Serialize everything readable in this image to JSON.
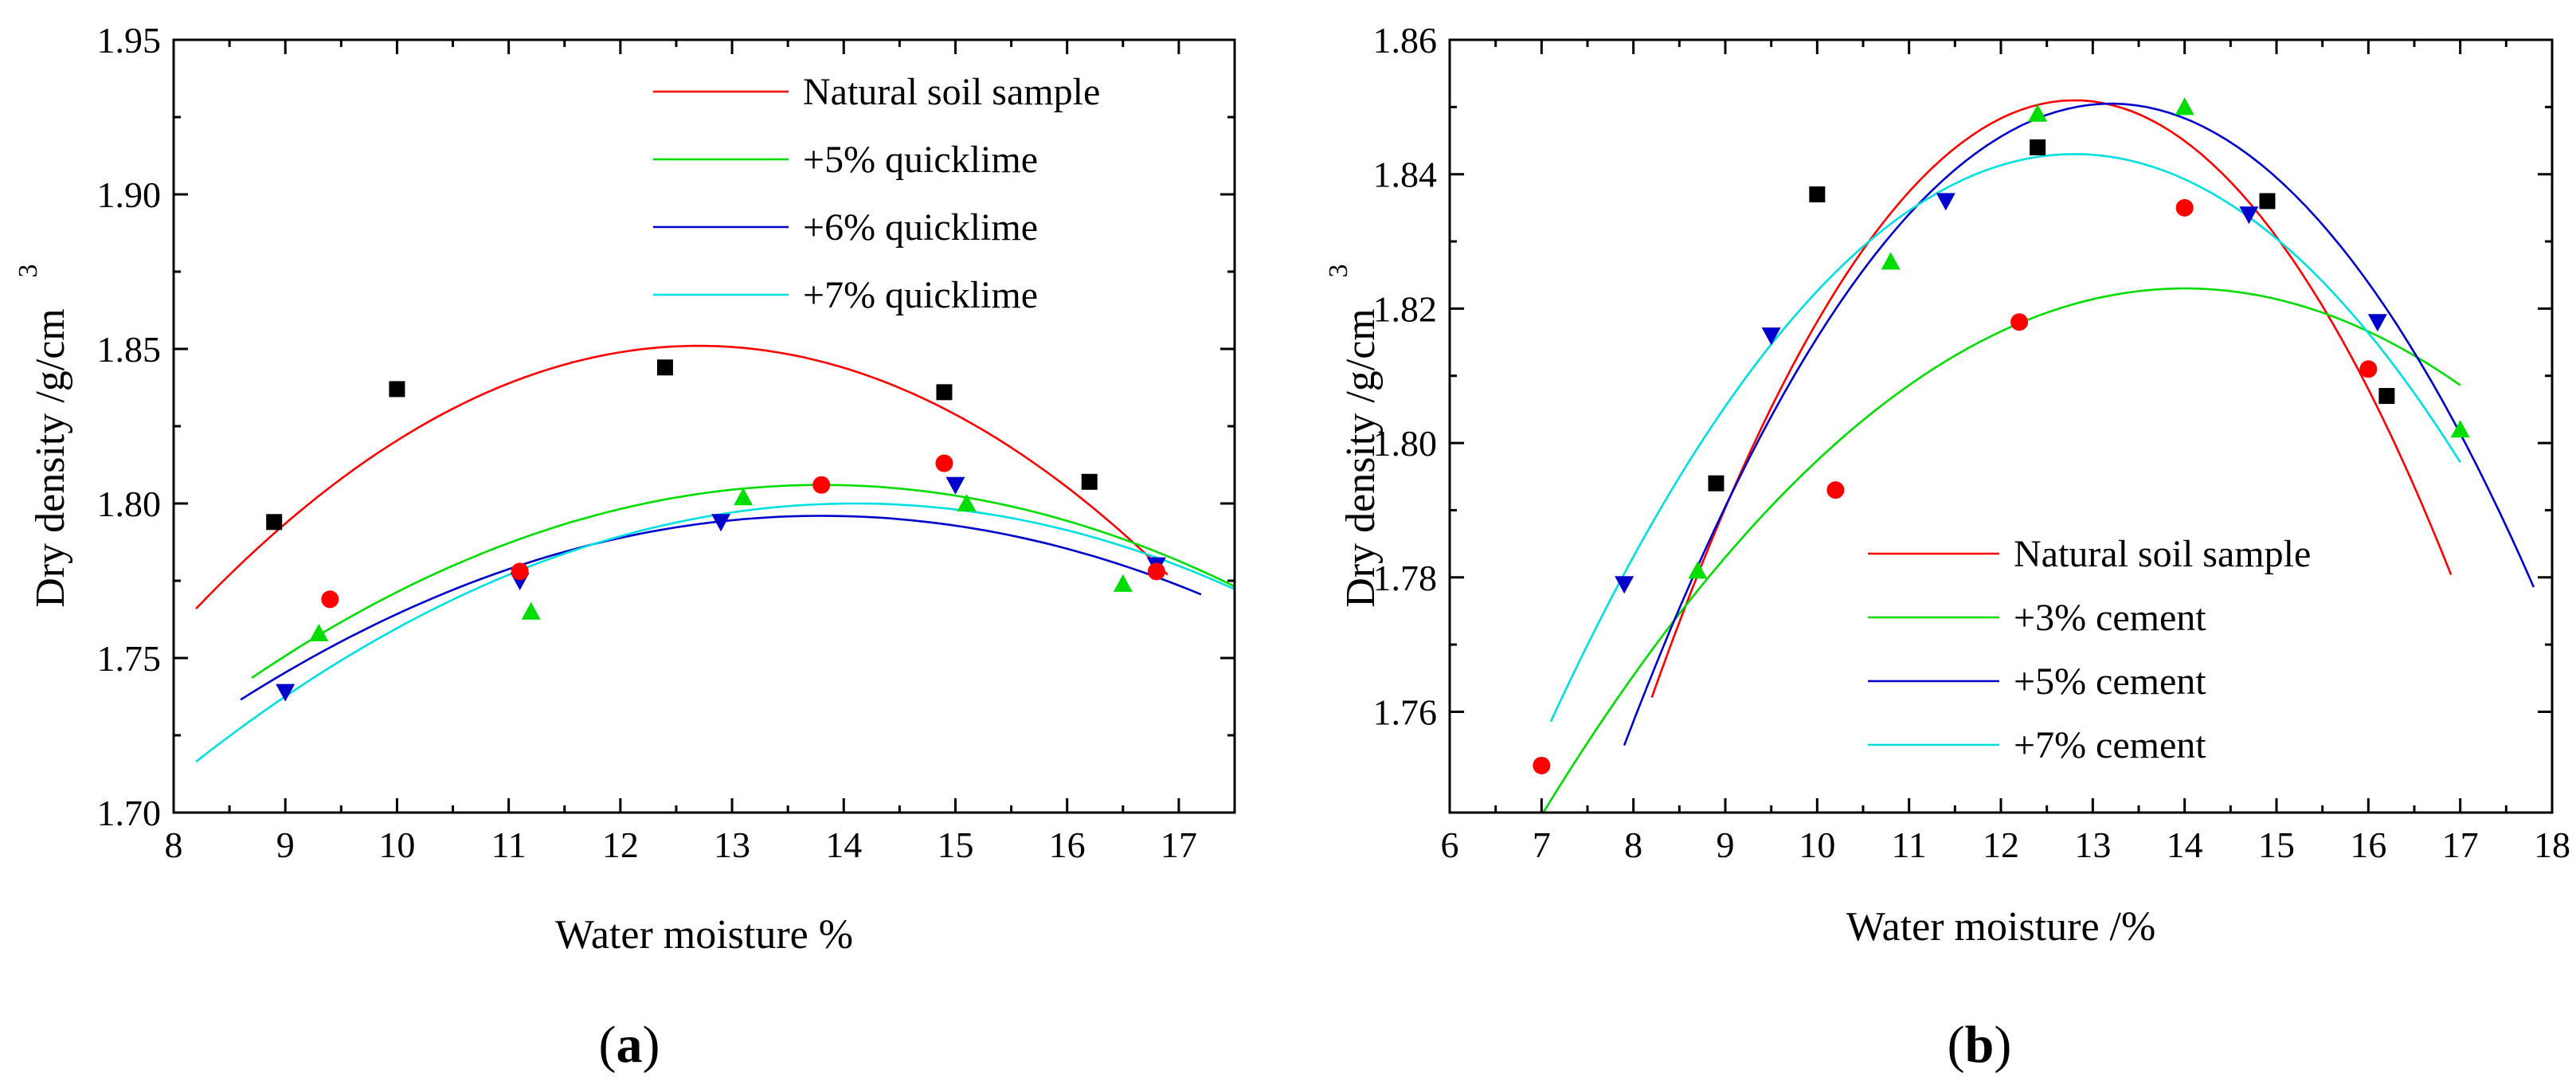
{
  "chart_data": [
    {
      "type": "scatter",
      "panel_label": "a",
      "xlabel": "Water moisture %",
      "ylabel": "Dry density /g/cm",
      "ylabel_superscript": "3",
      "xlim": [
        8,
        17.5
      ],
      "ylim": [
        1.7,
        1.95
      ],
      "xticks": [
        8,
        9,
        10,
        11,
        12,
        13,
        14,
        15,
        16,
        17
      ],
      "xtick_labels": [
        "8",
        "9",
        "10",
        "11",
        "12",
        "13",
        "14",
        "15",
        "16",
        "17"
      ],
      "yticks": [
        1.7,
        1.75,
        1.8,
        1.85,
        1.9,
        1.95
      ],
      "ytick_labels": [
        "1.70",
        "1.75",
        "1.80",
        "1.85",
        "1.90",
        "1.95"
      ],
      "legend_position": "top-right",
      "series": [
        {
          "name": "Natural soil sample",
          "color": "#ff0000",
          "marker": "square",
          "marker_color": "#000000",
          "points": [
            [
              8.9,
              1.794
            ],
            [
              10.0,
              1.837
            ],
            [
              12.4,
              1.844
            ],
            [
              14.9,
              1.836
            ],
            [
              16.2,
              1.807
            ]
          ],
          "fit": {
            "vertex_x": 12.7,
            "vertex_y": 1.851,
            "a": -0.0042,
            "x_range": [
              8.2,
              16.9
            ]
          }
        },
        {
          "name": "+5% quicklime",
          "color": "#00dd00",
          "marker": "triangle-up",
          "marker_color": "#00dd00",
          "points": [
            [
              9.3,
              1.758
            ],
            [
              11.2,
              1.765
            ],
            [
              13.1,
              1.802
            ],
            [
              15.1,
              1.8
            ],
            [
              16.5,
              1.774
            ]
          ],
          "fit": {
            "vertex_x": 13.8,
            "vertex_y": 1.806,
            "a": -0.0024,
            "x_range": [
              8.7,
              17.5
            ]
          }
        },
        {
          "name": "+6% quicklime",
          "color": "#0000cc",
          "marker": "triangle-down",
          "marker_color": "#0000cc",
          "points": [
            [
              9.0,
              1.739
            ],
            [
              11.1,
              1.775
            ],
            [
              12.9,
              1.794
            ],
            [
              15.0,
              1.806
            ],
            [
              16.8,
              1.78
            ]
          ],
          "fit": {
            "vertex_x": 13.8,
            "vertex_y": 1.796,
            "a": -0.0022,
            "x_range": [
              8.6,
              17.2
            ]
          }
        },
        {
          "name": "+7% quicklime",
          "color": "#00e0e0",
          "marker": "circle",
          "marker_color": "#ff0000",
          "points": [
            [
              9.4,
              1.769
            ],
            [
              11.1,
              1.778
            ],
            [
              13.8,
              1.806
            ],
            [
              14.9,
              1.813
            ],
            [
              16.8,
              1.778
            ]
          ],
          "fit": {
            "vertex_x": 14.1,
            "vertex_y": 1.8,
            "a": -0.0024,
            "x_range": [
              8.2,
              17.5
            ]
          }
        }
      ]
    },
    {
      "type": "scatter",
      "panel_label": "b",
      "xlabel": "Water moisture /%",
      "ylabel": "Dry density /g/cm",
      "ylabel_superscript": "3",
      "xlim": [
        6,
        18
      ],
      "ylim": [
        1.745,
        1.86
      ],
      "xticks": [
        6,
        7,
        8,
        9,
        10,
        11,
        12,
        13,
        14,
        15,
        16,
        17,
        18
      ],
      "xtick_labels": [
        "6",
        "7",
        "8",
        "9",
        "10",
        "11",
        "12",
        "13",
        "14",
        "15",
        "16",
        "17",
        "18"
      ],
      "yticks": [
        1.76,
        1.78,
        1.8,
        1.82,
        1.84,
        1.86
      ],
      "ytick_labels": [
        "1.76",
        "1.78",
        "1.80",
        "1.82",
        "1.84",
        "1.86"
      ],
      "legend_position": "bottom-center",
      "series": [
        {
          "name": "Natural soil sample",
          "color": "#ff0000",
          "marker": "square",
          "marker_color": "#000000",
          "points": [
            [
              8.9,
              1.794
            ],
            [
              10.0,
              1.837
            ],
            [
              12.4,
              1.844
            ],
            [
              14.9,
              1.836
            ],
            [
              16.2,
              1.807
            ]
          ],
          "fit": {
            "vertex_x": 12.8,
            "vertex_y": 1.851,
            "a": -0.0042,
            "x_range": [
              8.2,
              16.9
            ]
          }
        },
        {
          "name": "+3% cement",
          "color": "#00dd00",
          "marker": "triangle-up",
          "marker_color": "#00dd00",
          "points": [
            [
              8.7,
              1.781
            ],
            [
              10.8,
              1.827
            ],
            [
              12.4,
              1.849
            ],
            [
              14.0,
              1.85
            ],
            [
              17.0,
              1.802
            ]
          ],
          "fit": {
            "vertex_x": 14.0,
            "vertex_y": 1.823,
            "a": -0.0016,
            "x_range": [
              6.8,
              17.0
            ]
          }
        },
        {
          "name": "+5% cement",
          "color": "#0000cc",
          "marker": "triangle-down",
          "marker_color": "#0000cc",
          "points": [
            [
              7.9,
              1.779
            ],
            [
              9.5,
              1.816
            ],
            [
              11.4,
              1.836
            ],
            [
              14.7,
              1.834
            ],
            [
              16.1,
              1.818
            ]
          ],
          "fit": {
            "vertex_x": 13.2,
            "vertex_y": 1.8505,
            "a": -0.0034,
            "x_range": [
              7.9,
              17.8
            ]
          }
        },
        {
          "name": "+7% cement",
          "color": "#00e0e0",
          "marker": "circle",
          "marker_color": "#ff0000",
          "points": [
            [
              7.0,
              1.752
            ],
            [
              10.2,
              1.793
            ],
            [
              12.2,
              1.818
            ],
            [
              14.0,
              1.835
            ],
            [
              16.0,
              1.811
            ]
          ],
          "fit": {
            "vertex_x": 12.8,
            "vertex_y": 1.843,
            "a": -0.0026,
            "x_range": [
              7.1,
              17.0
            ]
          }
        }
      ]
    }
  ]
}
